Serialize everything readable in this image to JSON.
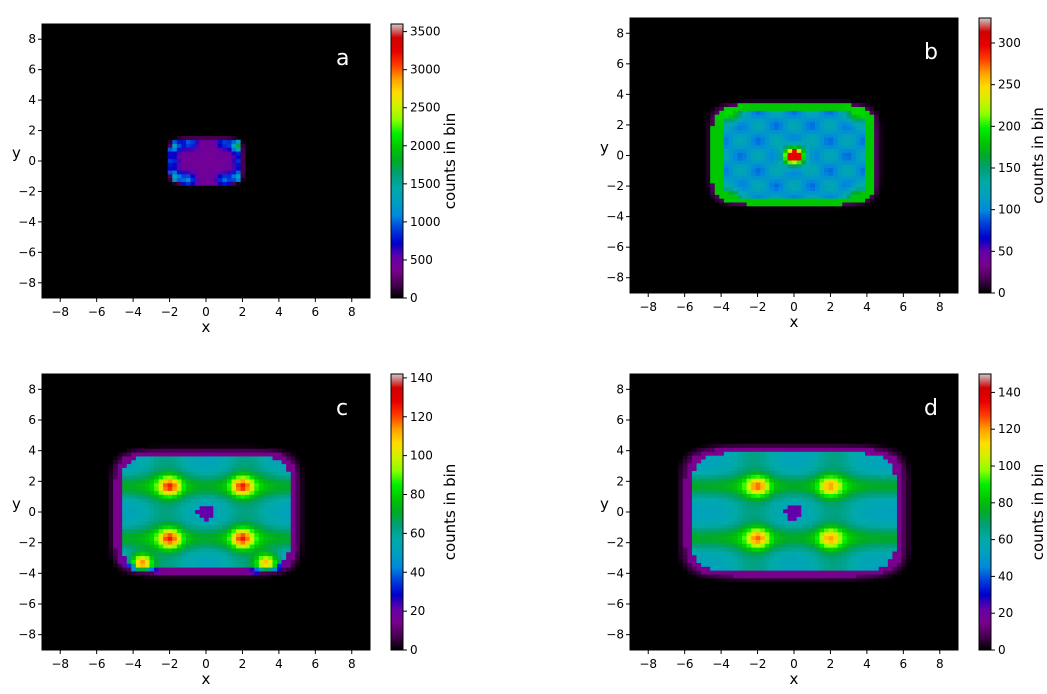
{
  "chart_data": [
    {
      "type": "heatmap",
      "panel_label": "a",
      "xlabel": "x",
      "ylabel": "y",
      "xlim": [
        -9,
        9
      ],
      "ylim": [
        -9,
        9
      ],
      "xticks": [
        -8,
        -6,
        -4,
        -2,
        0,
        2,
        4,
        6,
        8
      ],
      "yticks": [
        -8,
        -6,
        -4,
        -2,
        0,
        2,
        4,
        6,
        8
      ],
      "colorbar": {
        "label": "counts in bin",
        "range": [
          0,
          3600
        ],
        "ticks": [
          0,
          500,
          1000,
          1500,
          2000,
          2500,
          3000,
          3500
        ]
      },
      "occupied_region": {
        "x": [
          -2,
          2
        ],
        "y": [
          -1.5,
          1.5
        ]
      },
      "peak_spots": [
        {
          "x": -1.8,
          "y": 1.0,
          "count": 1300
        },
        {
          "x": -0.9,
          "y": 1.2,
          "count": 1000
        },
        {
          "x": 1.0,
          "y": 1.2,
          "count": 900
        },
        {
          "x": 1.8,
          "y": 1.0,
          "count": 1700
        },
        {
          "x": -1.8,
          "y": -1.0,
          "count": 1400
        },
        {
          "x": -1.0,
          "y": -1.2,
          "count": 1100
        },
        {
          "x": 1.0,
          "y": -1.2,
          "count": 1000
        },
        {
          "x": 1.8,
          "y": -1.0,
          "count": 1300
        },
        {
          "x": -1.9,
          "y": 0.0,
          "count": 900
        },
        {
          "x": 1.9,
          "y": 0.0,
          "count": 900
        }
      ]
    },
    {
      "type": "heatmap",
      "panel_label": "b",
      "xlabel": "x",
      "ylabel": "y",
      "xlim": [
        -9,
        9
      ],
      "ylim": [
        -9,
        9
      ],
      "xticks": [
        -8,
        -6,
        -4,
        -2,
        0,
        2,
        4,
        6,
        8
      ],
      "yticks": [
        -8,
        -6,
        -4,
        -2,
        0,
        2,
        4,
        6,
        8
      ],
      "colorbar": {
        "label": "counts in bin",
        "range": [
          0,
          330
        ],
        "ticks": [
          0,
          50,
          100,
          150,
          200,
          250,
          300
        ]
      },
      "occupied_region": {
        "x": [
          -4.5,
          4.5
        ],
        "y": [
          -3.2,
          3.4
        ]
      },
      "peak_spots": [
        {
          "x": 0,
          "y": 0,
          "count": 300
        },
        {
          "x": -3.5,
          "y": 2.8,
          "count": 190
        },
        {
          "x": 3.5,
          "y": 2.8,
          "count": 190
        },
        {
          "x": -3.5,
          "y": -2.7,
          "count": 180
        },
        {
          "x": 3.5,
          "y": -2.7,
          "count": 180
        }
      ]
    },
    {
      "type": "heatmap",
      "panel_label": "c",
      "xlabel": "x",
      "ylabel": "y",
      "xlim": [
        -9,
        9
      ],
      "ylim": [
        -9,
        9
      ],
      "xticks": [
        -8,
        -6,
        -4,
        -2,
        0,
        2,
        4,
        6,
        8
      ],
      "yticks": [
        -8,
        -6,
        -4,
        -2,
        0,
        2,
        4,
        6,
        8
      ],
      "colorbar": {
        "label": "counts in bin",
        "range": [
          0,
          142
        ],
        "ticks": [
          0,
          20,
          40,
          60,
          80,
          100,
          120,
          140
        ]
      },
      "occupied_region": {
        "x": [
          -5,
          5
        ],
        "y": [
          -4,
          4
        ]
      },
      "peak_spots": [
        {
          "x": -2,
          "y": 1.7,
          "count": 125
        },
        {
          "x": 2,
          "y": 1.7,
          "count": 125
        },
        {
          "x": -2,
          "y": -1.7,
          "count": 125
        },
        {
          "x": 2,
          "y": -1.7,
          "count": 125
        },
        {
          "x": -3.5,
          "y": -3.3,
          "count": 115
        },
        {
          "x": 3.3,
          "y": -3.3,
          "count": 110
        }
      ]
    },
    {
      "type": "heatmap",
      "panel_label": "d",
      "xlabel": "x",
      "ylabel": "y",
      "xlim": [
        -9,
        9
      ],
      "ylim": [
        -9,
        9
      ],
      "xticks": [
        -8,
        -6,
        -4,
        -2,
        0,
        2,
        4,
        6,
        8
      ],
      "yticks": [
        -8,
        -6,
        -4,
        -2,
        0,
        2,
        4,
        6,
        8
      ],
      "colorbar": {
        "label": "counts in bin",
        "range": [
          0,
          150
        ],
        "ticks": [
          0,
          20,
          40,
          60,
          80,
          100,
          120,
          140
        ]
      },
      "occupied_region": {
        "x": [
          -6,
          6
        ],
        "y": [
          -4.2,
          4.2
        ]
      },
      "peak_spots": [
        {
          "x": -2,
          "y": 1.7,
          "count": 125
        },
        {
          "x": 2,
          "y": 1.7,
          "count": 120
        },
        {
          "x": -2,
          "y": -1.7,
          "count": 125
        },
        {
          "x": 2,
          "y": -1.7,
          "count": 120
        }
      ]
    }
  ]
}
